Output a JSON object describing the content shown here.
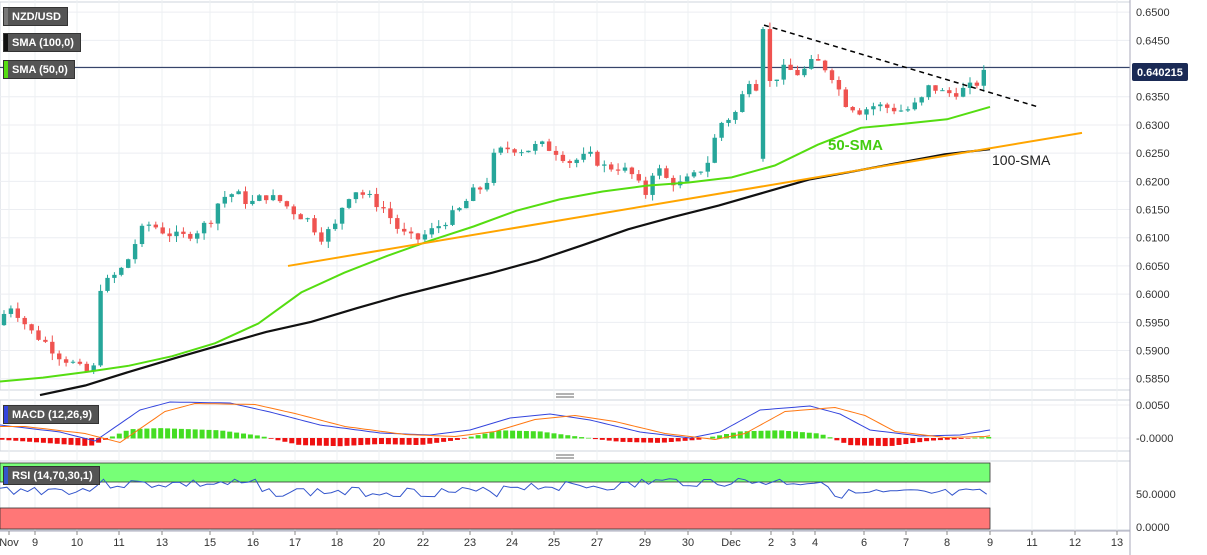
{
  "legend": {
    "symbol": "NZD/USD",
    "sma100": "SMA (100,0)",
    "sma50": "SMA (50,0)",
    "macd": "MACD (12,26,9)",
    "rsi": "RSI (14,70,30,1)"
  },
  "last_price": "0.640215",
  "annotations": {
    "sma50": "50-SMA",
    "sma100": "100-SMA"
  },
  "colors": {
    "up": "#26a69a",
    "down": "#ef5350",
    "sma50": "#55dd11",
    "sma100": "#111111",
    "trend_support": "#ffa500",
    "trend_resistance": "#000000",
    "macd_line": "#3344dd",
    "signal_line": "#ff7711",
    "hist_up": "#44dd22",
    "hist_down": "#ee1111",
    "rsi_line": "#3355cc",
    "overbought": "#77ff77",
    "oversold": "#ff7777"
  },
  "chart_data": {
    "type": "candlestick",
    "price_axis": {
      "ticks": [
        "0.6500",
        "0.6450",
        "0.6400",
        "0.6350",
        "0.6300",
        "0.6250",
        "0.6200",
        "0.6150",
        "0.6100",
        "0.6050",
        "0.6000",
        "0.5950",
        "0.5900",
        "0.5850"
      ],
      "ylim": [
        0.583,
        0.6518
      ]
    },
    "x_ticks": [
      "Nov",
      "9",
      "10",
      "11",
      "13",
      "15",
      "16",
      "17",
      "18",
      "20",
      "22",
      "23",
      "24",
      "25",
      "27",
      "29",
      "30",
      "Dec",
      "2",
      "3",
      "4",
      "6",
      "7",
      "8",
      "9",
      "11",
      "12",
      "13"
    ],
    "last_candle_close": 0.640215,
    "sma50_values": [
      0.5845,
      0.5852,
      0.5862,
      0.5873,
      0.589,
      0.5913,
      0.5948,
      0.6003,
      0.6038,
      0.6068,
      0.6095,
      0.612,
      0.6148,
      0.6168,
      0.6182,
      0.6192,
      0.6198,
      0.6207,
      0.6228,
      0.6265,
      0.6295,
      0.6302,
      0.631,
      0.6332
    ],
    "sma100_values": [
      0.5821,
      0.5838,
      0.5863,
      0.5887,
      0.591,
      0.5933,
      0.5951,
      0.5975,
      0.5998,
      0.6018,
      0.6038,
      0.606,
      0.6087,
      0.6115,
      0.6137,
      0.6157,
      0.618,
      0.6203,
      0.6218,
      0.6233,
      0.6248,
      0.6257
    ],
    "trendlines": [
      {
        "kind": "support",
        "from": 0.605,
        "to": 0.6286
      },
      {
        "kind": "resistance",
        "from": 0.6477,
        "to": 0.6331
      }
    ],
    "macd": {
      "ticks": [
        "0.0050",
        "-0.0000"
      ]
    },
    "rsi": {
      "ticks": [
        "50.0000",
        "0.0000"
      ],
      "overbought": 70,
      "oversold": 30
    }
  }
}
